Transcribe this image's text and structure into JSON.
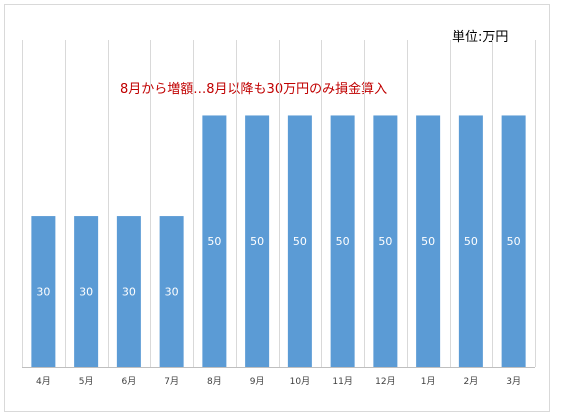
{
  "unit_label": "単位:万円",
  "annotation": {
    "text": "8月から増額…8月以降も30万円のみ損金算入",
    "color": "#c00000"
  },
  "colors": {
    "bar": "#5b9bd5",
    "gridline": "#d9d9d9",
    "axis": "#bfbfbf",
    "frame": "#d9d9d9"
  },
  "chart_data": {
    "type": "bar",
    "title": "",
    "xlabel": "",
    "ylabel": "",
    "categories": [
      "4月",
      "5月",
      "6月",
      "7月",
      "8月",
      "9月",
      "10月",
      "11月",
      "12月",
      "1月",
      "2月",
      "3月"
    ],
    "values": [
      30,
      30,
      30,
      30,
      50,
      50,
      50,
      50,
      50,
      50,
      50,
      50
    ],
    "ylim": [
      0,
      65
    ],
    "data_labels": true,
    "gridlines": "vertical",
    "legend": "none"
  }
}
